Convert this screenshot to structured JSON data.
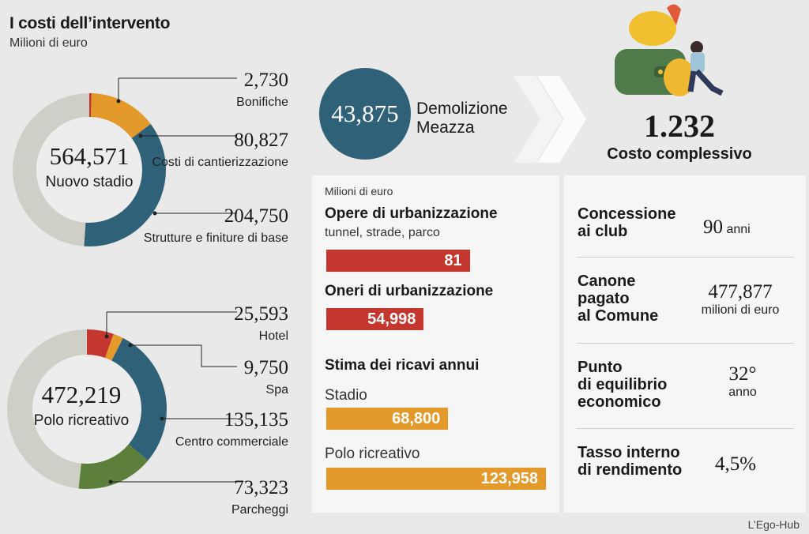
{
  "header": {
    "title": "I costi dell’intervento",
    "subtitle": "Milioni di euro"
  },
  "colors": {
    "teal": "#2f6178",
    "orange": "#e39a2b",
    "red": "#c4372e",
    "green": "#5d7f3c",
    "grey": "#cfcfc8",
    "dark_teal": "#2f6178"
  },
  "chart_data": [
    {
      "type": "pie",
      "center_value": "564,571",
      "center_label": "Nuovo stadio",
      "series": [
        {
          "name": "Bonifiche",
          "value": 2.73,
          "label": "2,730",
          "color": "#c4372e"
        },
        {
          "name": "Costi di cantierizzazione",
          "value": 80.827,
          "label": "80,827",
          "color": "#e39a2b"
        },
        {
          "name": "Strutture e finiture di base",
          "value": 204.75,
          "label": "204,750",
          "color": "#2f6178"
        }
      ],
      "total": 564.571
    },
    {
      "type": "pie",
      "center_value": "472,219",
      "center_label": "Polo ricreativo",
      "series": [
        {
          "name": "Hotel",
          "value": 25.593,
          "label": "25,593",
          "color": "#c4372e"
        },
        {
          "name": "Spa",
          "value": 9.75,
          "label": "9,750",
          "color": "#e39a2b"
        },
        {
          "name": "Centro commerciale",
          "value": 135.135,
          "label": "135,135",
          "color": "#2f6178"
        },
        {
          "name": "Parcheggi",
          "value": 73.323,
          "label": "73,323",
          "color": "#5d7f3c"
        }
      ],
      "total": 472.219
    },
    {
      "type": "bar",
      "unit": "Milioni di euro",
      "categories": [
        "Opere di urbanizzazione",
        "Oneri di urbanizzazione",
        "Stadio",
        "Polo ricreativo"
      ],
      "values": [
        81,
        54.998,
        68.8,
        123.958
      ],
      "labels": [
        "81",
        "54,998",
        "68,800",
        "123,958"
      ],
      "colors": [
        "#c4372e",
        "#c4372e",
        "#e39a2b",
        "#e39a2b"
      ],
      "xlim": [
        0,
        123.958
      ]
    }
  ],
  "demolition": {
    "value": "43,875",
    "label_1": "Demolizione",
    "label_2": "Meazza"
  },
  "total": {
    "value": "1.232",
    "label": "Costo complessivo"
  },
  "mid": {
    "unit": "Milioni di euro",
    "urb_title": "Opere di urbanizzazione",
    "urb_sub": "tunnel, strade, parco",
    "urb_value": "81",
    "oneri_title": "Oneri di urbanizzazione",
    "oneri_value": "54,998",
    "ricavi_title": "Stima dei ricavi annui",
    "stadio_label": "Stadio",
    "stadio_value": "68,800",
    "polo_label": "Polo ricreativo",
    "polo_value": "123,958"
  },
  "right": [
    {
      "title_1": "Concessione",
      "title_2": "ai club",
      "title_3": "",
      "value": "90",
      "unit": "anni"
    },
    {
      "title_1": "Canone",
      "title_2": "pagato",
      "title_3": "al Comune",
      "value": "477,877",
      "unit": "milioni di euro"
    },
    {
      "title_1": "Punto",
      "title_2": "di equilibrio",
      "title_3": "economico",
      "value": "32°",
      "unit": "anno"
    },
    {
      "title_1": "Tasso interno",
      "title_2": "di rendimento",
      "title_3": "",
      "value": "4,5%",
      "unit": ""
    }
  ],
  "source": "L’Ego-Hub"
}
